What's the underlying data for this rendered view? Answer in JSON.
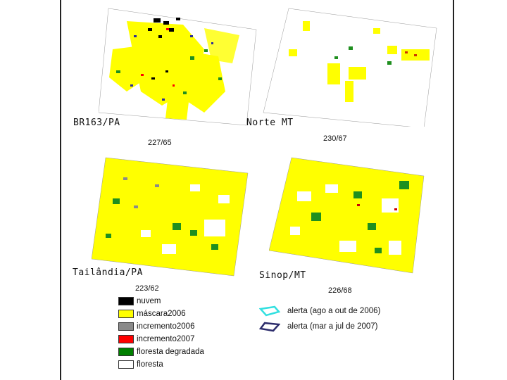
{
  "panels": [
    {
      "id": "br163",
      "label": "BR163/PA",
      "scene": "227/65"
    },
    {
      "id": "nortemt",
      "label": "Norte MT",
      "scene": "230/67"
    },
    {
      "id": "tailandia",
      "label": "Tailândia/PA",
      "scene": "223/62"
    },
    {
      "id": "sinop",
      "label": "Sinop/MT",
      "scene": "226/68"
    }
  ],
  "legend": [
    {
      "label": "nuvem",
      "color": "#000000"
    },
    {
      "label": "máscara2006",
      "color": "#ffff00"
    },
    {
      "label": "incremento2006",
      "color": "#8a8a8a"
    },
    {
      "label": "incremento2007",
      "color": "#ff0000"
    },
    {
      "label": "floresta degradada",
      "color": "#008000"
    },
    {
      "label": "floresta",
      "color": "#ffffff"
    }
  ],
  "alerts": [
    {
      "label": "alerta (ago a out de 2006)",
      "color": "#33e0e0"
    },
    {
      "label": "alerta (mar a jul de 2007)",
      "color": "#2b2b6b"
    }
  ],
  "colors": {
    "yellow": "#ffff00",
    "green": "#1f8f1f",
    "white": "#ffffff",
    "frame": "#222222"
  }
}
